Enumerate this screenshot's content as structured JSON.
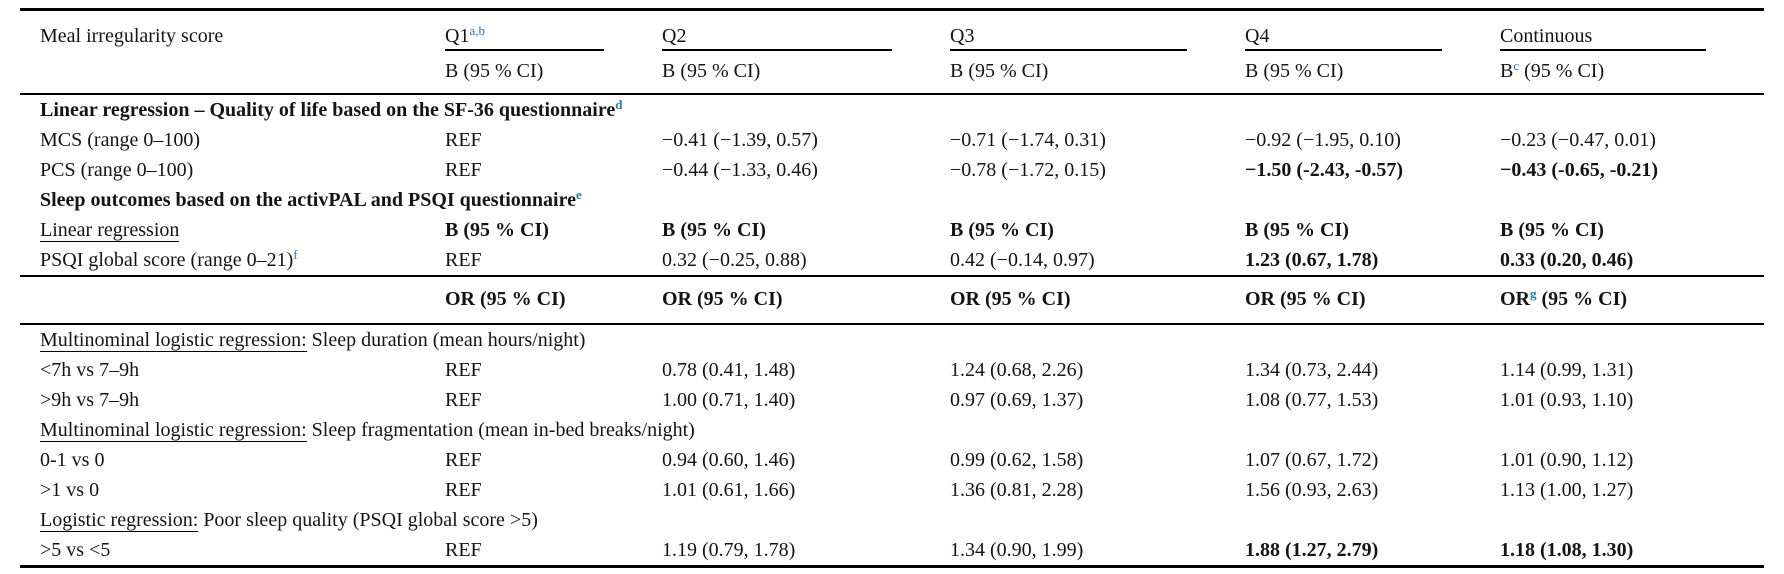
{
  "meta": {
    "accent_color": "#1a7db6",
    "text_color": "#141414"
  },
  "table": {
    "corner_label": "Meal irregularity score",
    "columns": [
      {
        "title": "Q1{a,b}",
        "sub": "B (95 % CI)"
      },
      {
        "title": "Q2",
        "sub": "B (95 % CI)"
      },
      {
        "title": "Q3",
        "sub": "B (95 % CI)"
      },
      {
        "title": "Q4",
        "sub": "B (95 % CI)"
      },
      {
        "title": "Continuous",
        "sub": "B{c} (95 % CI)"
      }
    ],
    "sections": [
      {
        "rows": [
          {
            "type": "span",
            "bold": true,
            "text": "Linear regression – Quality of life based on the SF-36 questionnaire{d}"
          },
          {
            "type": "data",
            "label": "MCS (range 0–100)",
            "cells": [
              "REF",
              "−0.41 (−1.39, 0.57)",
              "−0.71 (−1.74, 0.31)",
              "−0.92 (−1.95, 0.10)",
              "−0.23 (−0.47, 0.01)"
            ]
          },
          {
            "type": "data",
            "label": "PCS (range 0–100)",
            "cells": [
              "REF",
              "−0.44 (−1.33, 0.46)",
              "−0.78 (−1.72, 0.15)",
              {
                "t": "−1.50 (-2.43, -0.57)",
                "b": true
              },
              {
                "t": "−0.43 (-0.65, -0.21)",
                "b": true
              }
            ]
          },
          {
            "type": "span",
            "bold": true,
            "text": "Sleep outcomes based on the activPAL and PSQI questionnaire{e}"
          },
          {
            "type": "data",
            "label": "[[Linear regression]]",
            "cells": [
              {
                "t": "B (95 % CI)",
                "b": true
              },
              {
                "t": "B (95 % CI)",
                "b": true
              },
              {
                "t": "B (95 % CI)",
                "b": true
              },
              {
                "t": "B (95 % CI)",
                "b": true
              },
              {
                "t": "B (95 % CI)",
                "b": true
              }
            ]
          },
          {
            "type": "data",
            "label": "PSQI global score (range 0–21){f}",
            "cells": [
              "REF",
              "0.32 (−0.25, 0.88)",
              "0.42 (−0.14, 0.97)",
              {
                "t": "1.23 (0.67, 1.78)",
                "b": true
              },
              {
                "t": "0.33 (0.20, 0.46)",
                "b": true
              }
            ]
          }
        ]
      },
      {
        "pad": true,
        "rows": [
          {
            "type": "data",
            "label": "",
            "cells": [
              {
                "t": "OR (95 % CI)",
                "b": true
              },
              {
                "t": "OR (95 % CI)",
                "b": true
              },
              {
                "t": "OR (95 % CI)",
                "b": true
              },
              {
                "t": "OR (95 % CI)",
                "b": true
              },
              {
                "t": "OR{g} (95 % CI)",
                "b": true
              }
            ]
          }
        ]
      },
      {
        "rows": [
          {
            "type": "span",
            "bold": false,
            "text": "[[Multinominal logistic regression:]] Sleep duration (mean hours/night)"
          },
          {
            "type": "data",
            "label": "<7h vs 7–9h",
            "cells": [
              "REF",
              "0.78 (0.41, 1.48)",
              "1.24 (0.68, 2.26)",
              "1.34 (0.73, 2.44)",
              "1.14 (0.99, 1.31)"
            ]
          },
          {
            "type": "data",
            "label": ">9h vs 7–9h",
            "cells": [
              "REF",
              "1.00 (0.71, 1.40)",
              "0.97 (0.69, 1.37)",
              "1.08 (0.77, 1.53)",
              "1.01 (0.93, 1.10)"
            ]
          },
          {
            "type": "span",
            "bold": false,
            "text": "[[Multinominal logistic regression:]] Sleep fragmentation (mean in-bed breaks/night)"
          },
          {
            "type": "data",
            "label": "0-1 vs 0",
            "cells": [
              "REF",
              "0.94 (0.60, 1.46)",
              "0.99 (0.62, 1.58)",
              "1.07 (0.67, 1.72)",
              "1.01 (0.90, 1.12)"
            ]
          },
          {
            "type": "data",
            "label": ">1 vs 0",
            "cells": [
              "REF",
              "1.01 (0.61, 1.66)",
              "1.36 (0.81, 2.28)",
              "1.56 (0.93, 2.63)",
              "1.13 (1.00, 1.27)"
            ]
          },
          {
            "type": "span",
            "bold": false,
            "text": "[[Logistic regression:]] Poor sleep quality (PSQI global score >5)"
          },
          {
            "type": "data",
            "label": ">5 vs <5",
            "cells": [
              "REF",
              "1.19 (0.79, 1.78)",
              "1.34 (0.90, 1.99)",
              {
                "t": "1.88 (1.27, 2.79)",
                "b": true
              },
              {
                "t": "1.18 (1.08, 1.30)",
                "b": true
              }
            ]
          }
        ]
      }
    ]
  }
}
